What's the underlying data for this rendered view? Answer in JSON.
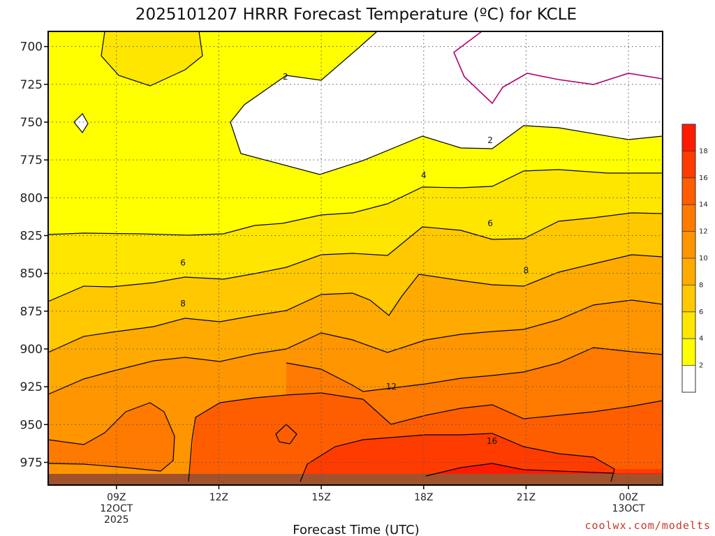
{
  "chart_data": {
    "type": "contour",
    "title": "2025101207 HRRR Forecast Temperature (ºC) for KCLE",
    "xlabel": "Forecast Time (UTC)",
    "y_ticks": [
      "700",
      "725",
      "750",
      "775",
      "800",
      "825",
      "850",
      "875",
      "900",
      "925",
      "950",
      "975"
    ],
    "y_values": [
      700,
      725,
      750,
      775,
      800,
      825,
      850,
      875,
      900,
      925,
      950,
      975
    ],
    "ylim": [
      690,
      990
    ],
    "x_ticks": [
      {
        "hour": 9,
        "lines": [
          "09Z",
          "12OCT",
          "2025"
        ]
      },
      {
        "hour": 12,
        "lines": [
          "12Z"
        ]
      },
      {
        "hour": 15,
        "lines": [
          "15Z"
        ]
      },
      {
        "hour": 18,
        "lines": [
          "18Z"
        ]
      },
      {
        "hour": 21,
        "lines": [
          "21Z"
        ]
      },
      {
        "hour": 24,
        "lines": [
          "00Z",
          "13OCT"
        ]
      }
    ],
    "xlim": [
      7,
      25
    ],
    "colorbar": {
      "levels": [
        2,
        4,
        6,
        8,
        10,
        12,
        14,
        16,
        18
      ],
      "colors": [
        "#ffffff",
        "#ffff00",
        "#ffe600",
        "#ffc800",
        "#ffaa00",
        "#ff9500",
        "#ff7a00",
        "#ff5e00",
        "#ff3c00",
        "#ff1a00"
      ]
    },
    "contour_labels": [
      {
        "value": "2",
        "hour": 13.95,
        "p": 720
      },
      {
        "value": "2",
        "hour": 19.95,
        "p": 762
      },
      {
        "value": "4",
        "hour": 18.0,
        "p": 785
      },
      {
        "value": "6",
        "hour": 10.95,
        "p": 843
      },
      {
        "value": "6",
        "hour": 19.95,
        "p": 817
      },
      {
        "value": "8",
        "hour": 10.95,
        "p": 870
      },
      {
        "value": "8",
        "hour": 21.0,
        "p": 848
      },
      {
        "value": "12",
        "hour": 17.05,
        "p": 925
      },
      {
        "value": "16",
        "hour": 20.0,
        "p": 961
      }
    ]
  },
  "credit": "coolwx.com/modelts",
  "colors": {
    "surface": "#a0522d",
    "contour": "#000000",
    "zero_contour": "#b0006e",
    "grid": "#555555"
  }
}
